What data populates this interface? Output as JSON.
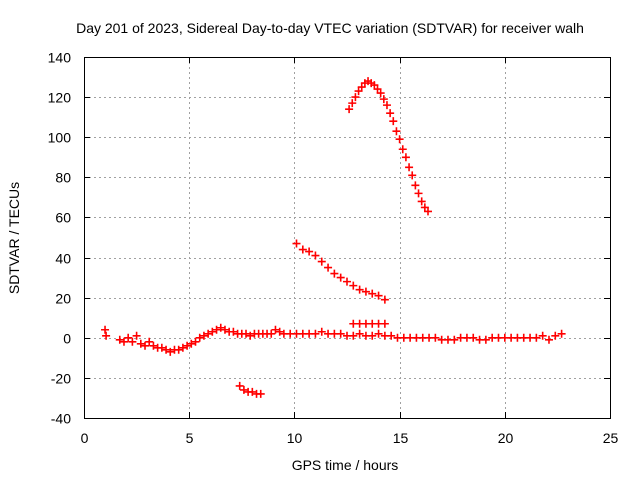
{
  "chart_data": {
    "type": "scatter",
    "title": "Day 201 of 2023, Sidereal Day-to-day VTEC variation (SDTVAR) for receiver walh",
    "xlabel": "GPS time / hours",
    "ylabel": "SDTVAR / TECUs",
    "xlim": [
      0,
      25
    ],
    "ylim": [
      -40,
      140
    ],
    "xticks": [
      "0",
      "5",
      "10",
      "15",
      "20",
      "25"
    ],
    "yticks": [
      "-40",
      "-20",
      "0",
      "20",
      "40",
      "60",
      "80",
      "100",
      "120",
      "140"
    ],
    "grid": true,
    "marker": "plus",
    "color": "#ff0000",
    "series": [
      {
        "name": "arc-near-zero-early",
        "points": [
          [
            1.0,
            4
          ],
          [
            1.05,
            1
          ],
          [
            1.7,
            -1
          ],
          [
            1.9,
            -2
          ],
          [
            2.1,
            0
          ],
          [
            2.3,
            -2
          ],
          [
            2.5,
            1
          ],
          [
            2.7,
            -3
          ],
          [
            2.9,
            -4
          ],
          [
            3.1,
            -2
          ],
          [
            3.3,
            -4
          ],
          [
            3.5,
            -5
          ],
          [
            3.7,
            -5
          ],
          [
            3.9,
            -6
          ],
          [
            4.1,
            -7
          ],
          [
            4.3,
            -6
          ],
          [
            4.5,
            -6
          ],
          [
            4.7,
            -5
          ],
          [
            4.9,
            -4
          ],
          [
            5.1,
            -3
          ],
          [
            5.3,
            -2
          ],
          [
            5.5,
            0
          ],
          [
            5.7,
            1
          ],
          [
            5.9,
            2
          ],
          [
            6.1,
            3
          ],
          [
            6.3,
            4
          ],
          [
            6.5,
            5
          ],
          [
            6.7,
            4
          ],
          [
            6.9,
            3
          ],
          [
            7.1,
            3
          ],
          [
            7.3,
            2
          ],
          [
            7.5,
            2
          ],
          [
            7.7,
            2
          ],
          [
            7.9,
            1
          ],
          [
            8.1,
            2
          ],
          [
            8.3,
            2
          ],
          [
            8.5,
            2
          ],
          [
            8.7,
            2
          ],
          [
            8.9,
            2
          ],
          [
            9.1,
            4
          ],
          [
            9.3,
            3
          ]
        ]
      },
      {
        "name": "arc-near-zero-mid",
        "points": [
          [
            9.5,
            2
          ],
          [
            9.8,
            2
          ],
          [
            10.1,
            2
          ],
          [
            10.4,
            2
          ],
          [
            10.7,
            2
          ],
          [
            11.0,
            2
          ],
          [
            11.3,
            3
          ],
          [
            11.6,
            2
          ],
          [
            11.9,
            2
          ],
          [
            12.2,
            2
          ],
          [
            12.5,
            1
          ],
          [
            12.8,
            1
          ],
          [
            13.1,
            2
          ],
          [
            13.4,
            1
          ],
          [
            13.7,
            1
          ],
          [
            14.0,
            2
          ],
          [
            14.3,
            1
          ],
          [
            14.6,
            1
          ],
          [
            14.9,
            0
          ],
          [
            15.2,
            0
          ],
          [
            15.5,
            0
          ],
          [
            15.8,
            0
          ],
          [
            16.1,
            0
          ],
          [
            16.4,
            0
          ],
          [
            16.7,
            0
          ],
          [
            17.0,
            -1
          ],
          [
            17.3,
            -1
          ],
          [
            17.6,
            -1
          ],
          [
            17.9,
            0
          ],
          [
            18.2,
            0
          ],
          [
            18.5,
            0
          ],
          [
            18.8,
            -1
          ],
          [
            19.1,
            -1
          ],
          [
            19.4,
            0
          ],
          [
            19.7,
            0
          ],
          [
            20.0,
            0
          ],
          [
            20.3,
            0
          ],
          [
            20.6,
            0
          ],
          [
            20.9,
            0
          ],
          [
            21.2,
            0
          ],
          [
            21.5,
            0
          ],
          [
            21.8,
            1
          ],
          [
            22.1,
            -1
          ],
          [
            22.4,
            1
          ],
          [
            22.7,
            2
          ]
        ]
      },
      {
        "name": "arc-7-tecu",
        "points": [
          [
            12.8,
            7
          ],
          [
            13.1,
            7
          ],
          [
            13.4,
            7
          ],
          [
            13.7,
            7
          ],
          [
            14.0,
            7
          ],
          [
            14.3,
            7
          ]
        ]
      },
      {
        "name": "arc-negative",
        "points": [
          [
            7.4,
            -24
          ],
          [
            7.6,
            -26
          ],
          [
            7.8,
            -27
          ],
          [
            8.0,
            -27
          ],
          [
            8.2,
            -28
          ],
          [
            8.4,
            -28
          ]
        ]
      },
      {
        "name": "arc-descending",
        "points": [
          [
            10.1,
            47
          ],
          [
            10.4,
            44
          ],
          [
            10.7,
            43
          ],
          [
            11.0,
            41
          ],
          [
            11.3,
            38
          ],
          [
            11.6,
            35
          ],
          [
            11.9,
            32
          ],
          [
            12.2,
            30
          ],
          [
            12.5,
            28
          ],
          [
            12.8,
            26
          ],
          [
            13.1,
            24
          ],
          [
            13.4,
            23
          ],
          [
            13.7,
            22
          ],
          [
            14.0,
            21
          ],
          [
            14.3,
            19
          ]
        ]
      },
      {
        "name": "arc-peak",
        "points": [
          [
            12.6,
            114
          ],
          [
            12.75,
            117
          ],
          [
            12.9,
            120
          ],
          [
            13.05,
            123
          ],
          [
            13.2,
            125
          ],
          [
            13.35,
            127
          ],
          [
            13.5,
            128
          ],
          [
            13.65,
            127
          ],
          [
            13.8,
            126
          ],
          [
            13.95,
            124
          ],
          [
            14.1,
            122
          ],
          [
            14.25,
            119
          ],
          [
            14.4,
            116
          ],
          [
            14.55,
            112
          ],
          [
            14.7,
            108
          ],
          [
            14.85,
            103
          ],
          [
            15.0,
            99
          ],
          [
            15.15,
            94
          ],
          [
            15.3,
            90
          ],
          [
            15.45,
            85
          ],
          [
            15.6,
            81
          ],
          [
            15.75,
            76
          ],
          [
            15.9,
            72
          ],
          [
            16.05,
            68
          ],
          [
            16.2,
            65
          ],
          [
            16.35,
            63
          ]
        ]
      }
    ]
  }
}
